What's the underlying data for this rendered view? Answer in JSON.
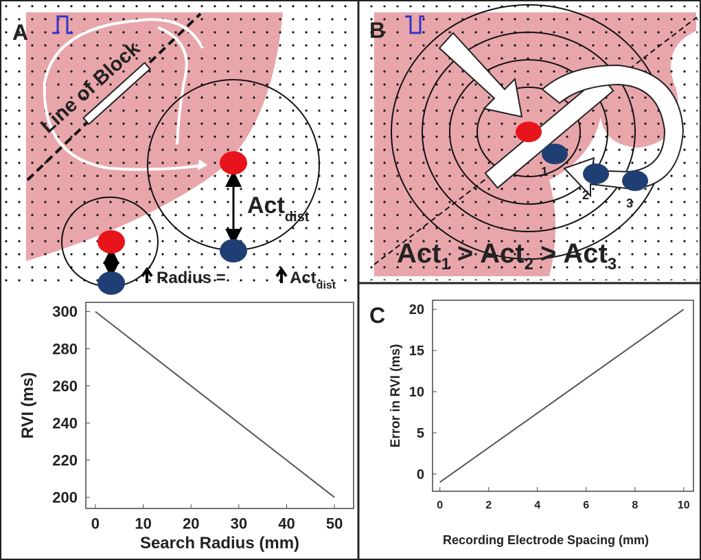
{
  "panel_a": {
    "label": "A",
    "line_of_block": "Line of Block",
    "act_dist": {
      "text": "Act",
      "sub": "dist"
    },
    "radius_note": {
      "text": "Radius = ",
      "act": "Act",
      "sub": "dist"
    }
  },
  "panel_b": {
    "label": "B",
    "electrodes": [
      "1",
      "2",
      "3"
    ],
    "comparison": {
      "parts": [
        {
          "text": "Act",
          "sub": "1"
        },
        {
          "text": "Act",
          "sub": "2"
        },
        {
          "text": "Act",
          "sub": "3"
        }
      ],
      "separator": ">"
    }
  },
  "panel_c": {
    "label": "C"
  },
  "chart_data": [
    {
      "type": "line",
      "xlabel": "Search Radius (mm)",
      "ylabel": "RVI (ms)",
      "xlim": [
        -2,
        54
      ],
      "xticks": [
        0,
        10,
        20,
        30,
        40,
        50
      ],
      "ylim": [
        194,
        305
      ],
      "yticks": [
        200,
        220,
        240,
        260,
        280,
        300
      ],
      "grid": false,
      "series": [
        {
          "x": [
            0,
            50
          ],
          "values": [
            300,
            200
          ],
          "color": "#555555"
        }
      ]
    },
    {
      "type": "line",
      "xlabel": "Recording Electrode Spacing (mm)",
      "ylabel": "Error in RVI (ms)",
      "xlim": [
        -0.3,
        10.4
      ],
      "xticks": [
        0,
        2,
        4,
        6,
        8,
        10
      ],
      "ylim": [
        -2.1,
        21.1
      ],
      "yticks": [
        0,
        5,
        10,
        15,
        20
      ],
      "grid": false,
      "series": [
        {
          "x": [
            0,
            10
          ],
          "values": [
            -1,
            20
          ],
          "color": "#555555"
        }
      ]
    }
  ]
}
